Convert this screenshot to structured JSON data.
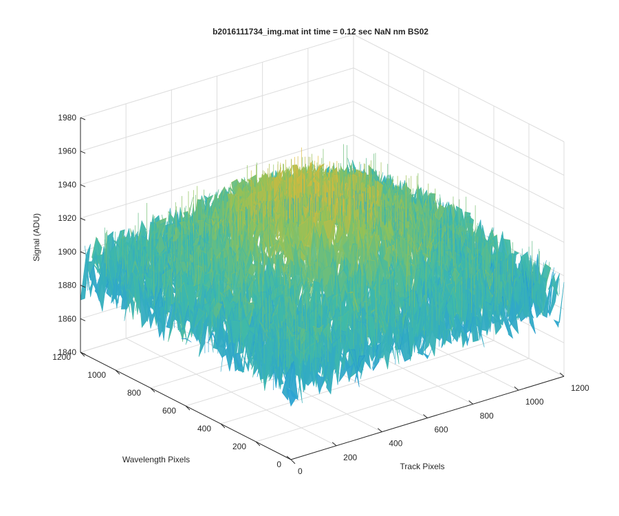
{
  "chart_data": {
    "type": "surface",
    "title": "b2016111734_img.mat int time = 0.12 sec  NaN nm BS02",
    "xlabel": "Track Pixels",
    "ylabel": "Wavelength Pixels",
    "zlabel": "Signal (ADU)",
    "xlim": [
      0,
      1200
    ],
    "ylim": [
      0,
      1200
    ],
    "zlim": [
      1840,
      1980
    ],
    "x_ticks": [
      "0",
      "200",
      "400",
      "600",
      "800",
      "1000",
      "1200"
    ],
    "y_ticks": [
      "0",
      "200",
      "400",
      "600",
      "800",
      "1000",
      "1200"
    ],
    "z_ticks": [
      "1840",
      "1860",
      "1880",
      "1900",
      "1920",
      "1940",
      "1960",
      "1980"
    ],
    "grid": true,
    "colormap": [
      "#0072bd",
      "#2ba3d3",
      "#3fb9a8",
      "#8fc25a",
      "#d9b73c",
      "#f2d23b"
    ],
    "surface_level_profile": {
      "description_units": "Signal (ADU)",
      "edge_mean": 1890,
      "center_mean": 1920,
      "corner_min_near": 1860,
      "peak_max": 1970
    }
  }
}
